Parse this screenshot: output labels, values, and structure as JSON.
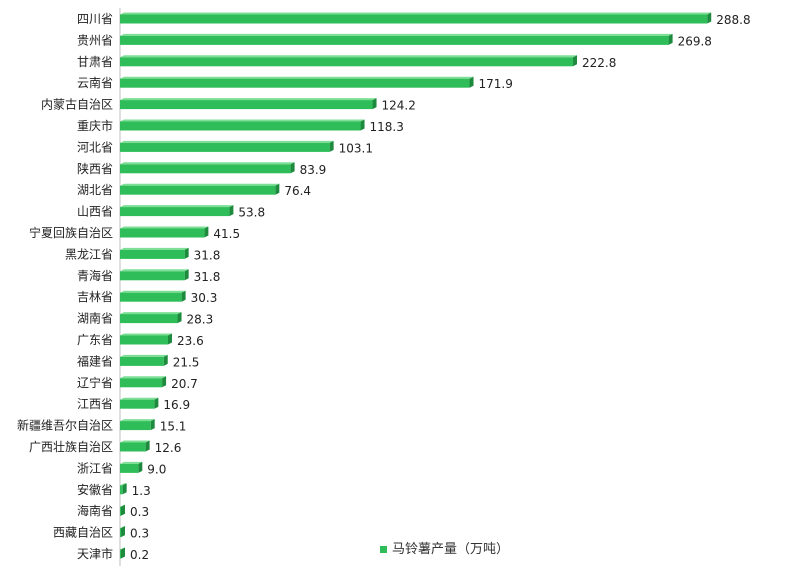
{
  "chart_data": {
    "type": "bar",
    "orientation": "horizontal",
    "categories": [
      "四川省",
      "贵州省",
      "甘肃省",
      "云南省",
      "内蒙古自治区",
      "重庆市",
      "河北省",
      "陕西省",
      "湖北省",
      "山西省",
      "宁夏回族自治区",
      "黑龙江省",
      "青海省",
      "吉林省",
      "湖南省",
      "广东省",
      "福建省",
      "辽宁省",
      "江西省",
      "新疆维吾尔自治区",
      "广西壮族自治区",
      "浙江省",
      "安徽省",
      "海南省",
      "西藏自治区",
      "天津市"
    ],
    "series": [
      {
        "name": "马铃薯产量（万吨）",
        "values": [
          288.8,
          269.8,
          222.8,
          171.9,
          124.2,
          118.3,
          103.1,
          83.9,
          76.4,
          53.8,
          41.5,
          31.8,
          31.8,
          30.3,
          28.3,
          23.6,
          21.5,
          20.7,
          16.9,
          15.1,
          12.6,
          9.0,
          1.3,
          0.3,
          0.3,
          0.2
        ],
        "labels": [
          "288.8",
          "269.8",
          "222.8",
          "171.9",
          "124.2",
          "118.3",
          "103.1",
          "83.9",
          "76.4",
          "53.8",
          "41.5",
          "31.8",
          "31.8",
          "30.3",
          "28.3",
          "23.6",
          "21.5",
          "20.7",
          "16.9",
          "15.1",
          "12.6",
          "9.0",
          "1.3",
          "0.3",
          "0.3",
          "0.2"
        ]
      }
    ],
    "title": "",
    "xlabel": "",
    "ylabel": "",
    "xlim": [
      0,
      300
    ],
    "grid": false,
    "legend_position": "bottom-right",
    "colors": {
      "bar": "#2ebd59",
      "bar_top": "#7ddf95",
      "bar_side": "#1d8a3e",
      "axis": "#bfbfbf"
    }
  }
}
